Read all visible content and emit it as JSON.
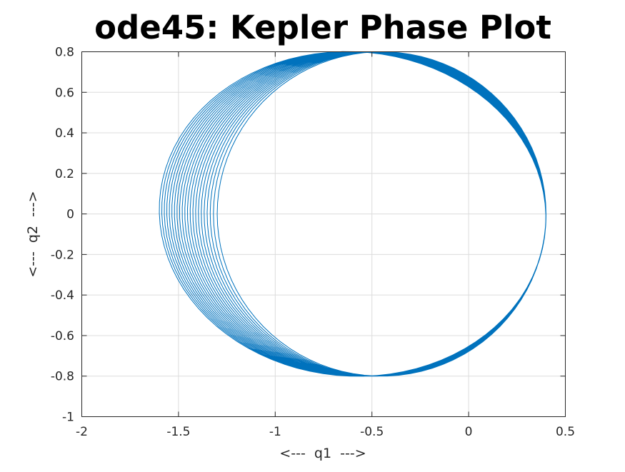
{
  "chart_data": {
    "type": "line",
    "title": "ode45: Kepler Phase Plot",
    "xlabel": "<---  q1  --->",
    "ylabel": "<---  q2  --->",
    "xlim": [
      -2,
      0.5
    ],
    "ylim": [
      -1,
      0.8
    ],
    "xticks": [
      -2,
      -1.5,
      -1,
      -0.5,
      0,
      0.5
    ],
    "xtick_labels": [
      "-2",
      "-1.5",
      "-1",
      "-0.5",
      "0",
      "0.5"
    ],
    "yticks": [
      -1,
      -0.8,
      -0.6,
      -0.4,
      -0.2,
      0,
      0.2,
      0.4,
      0.6,
      0.8
    ],
    "ytick_labels": [
      "-1",
      "-0.8",
      "-0.6",
      "-0.4",
      "-0.2",
      "0",
      "0.2",
      "0.4",
      "0.6",
      "0.8"
    ],
    "grid": true,
    "line_color": "#0072BD",
    "series": [
      {
        "description_points": "Precessing elliptical orbit of the Kepler two-body problem; loops approximately follow an ellipse with right extreme q1 ≈ 0.4 at q2 = 0, top/bottom extremes q2 ≈ ±0.8 near q1 ≈ -0.5 to -0.6, and left extreme drifting from q1 ≈ -1.3 to q1 ≈ -1.6 at q2 = 0 across successive revolutions.",
        "loops": 22,
        "right_extreme_q1": 0.4,
        "left_extreme_q1_range": [
          -1.6,
          -1.3
        ],
        "q2_amplitude": 0.8,
        "points": [
          [
            0.4,
            0.0
          ],
          [
            0.33,
            0.32
          ],
          [
            0.13,
            0.59
          ],
          [
            -0.1,
            0.72
          ],
          [
            -0.35,
            0.79
          ],
          [
            -0.6,
            0.8
          ],
          [
            -0.85,
            0.74
          ],
          [
            -1.1,
            0.6
          ],
          [
            -1.3,
            0.35
          ],
          [
            -1.4,
            0.0
          ],
          [
            -1.3,
            -0.35
          ],
          [
            -1.1,
            -0.6
          ],
          [
            -0.85,
            -0.74
          ],
          [
            -0.6,
            -0.8
          ],
          [
            -0.35,
            -0.79
          ],
          [
            -0.1,
            -0.72
          ],
          [
            0.13,
            -0.59
          ],
          [
            0.33,
            -0.32
          ],
          [
            0.4,
            0.0
          ]
        ]
      }
    ]
  }
}
